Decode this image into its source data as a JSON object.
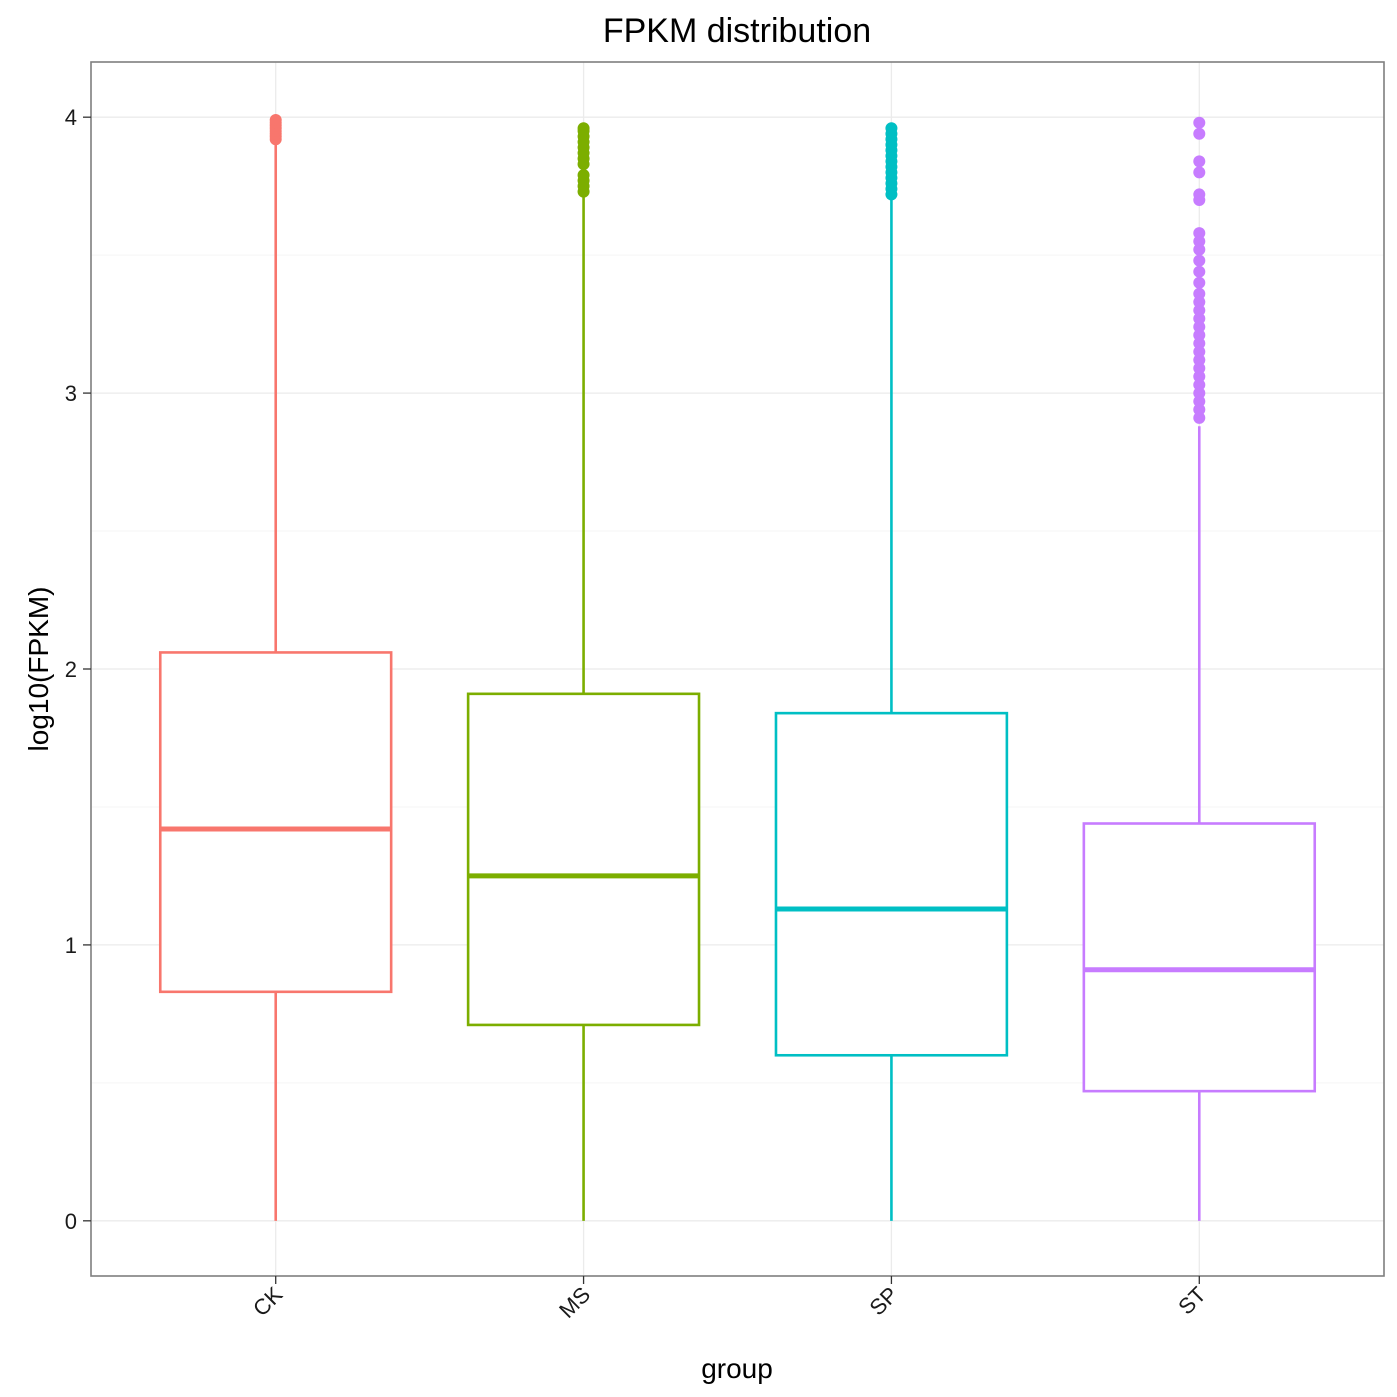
{
  "chart_data": {
    "type": "boxplot",
    "title": "FPKM distribution",
    "xlabel": "group",
    "ylabel": "log10(FPKM)",
    "ylim": [
      -0.2,
      4.2
    ],
    "yticks": [
      0,
      1,
      2,
      3,
      4
    ],
    "ytick_labels": [
      "0",
      "1",
      "2",
      "3",
      "4"
    ],
    "categories": [
      "CK",
      "MS",
      "SP",
      "ST"
    ],
    "grid": true,
    "legend": "none",
    "series": [
      {
        "name": "CK",
        "color": "#F8766D",
        "whisker_low": 0.0,
        "q1": 0.83,
        "median": 1.42,
        "q3": 2.06,
        "whisker_high": 3.9,
        "outliers": [
          3.92,
          3.93,
          3.94,
          3.95,
          3.96,
          3.97,
          3.98,
          3.99
        ]
      },
      {
        "name": "MS",
        "color": "#7CAE00",
        "whisker_low": 0.0,
        "q1": 0.71,
        "median": 1.25,
        "q3": 1.91,
        "whisker_high": 3.72,
        "outliers": [
          3.73,
          3.75,
          3.77,
          3.79,
          3.83,
          3.85,
          3.87,
          3.89,
          3.91,
          3.93,
          3.95,
          3.96
        ]
      },
      {
        "name": "SP",
        "color": "#00BFC4",
        "whisker_low": 0.0,
        "q1": 0.6,
        "median": 1.13,
        "q3": 1.84,
        "whisker_high": 3.71,
        "outliers": [
          3.72,
          3.74,
          3.76,
          3.78,
          3.8,
          3.82,
          3.84,
          3.86,
          3.88,
          3.9,
          3.92,
          3.94,
          3.96
        ]
      },
      {
        "name": "ST",
        "color": "#C77CFF",
        "whisker_low": 0.0,
        "q1": 0.47,
        "median": 0.91,
        "q3": 1.44,
        "whisker_high": 2.88,
        "outliers": [
          2.91,
          2.94,
          2.97,
          3.0,
          3.03,
          3.06,
          3.09,
          3.12,
          3.15,
          3.18,
          3.21,
          3.24,
          3.27,
          3.3,
          3.33,
          3.36,
          3.4,
          3.44,
          3.48,
          3.52,
          3.55,
          3.58,
          3.7,
          3.72,
          3.8,
          3.84,
          3.94,
          3.98
        ]
      }
    ]
  }
}
